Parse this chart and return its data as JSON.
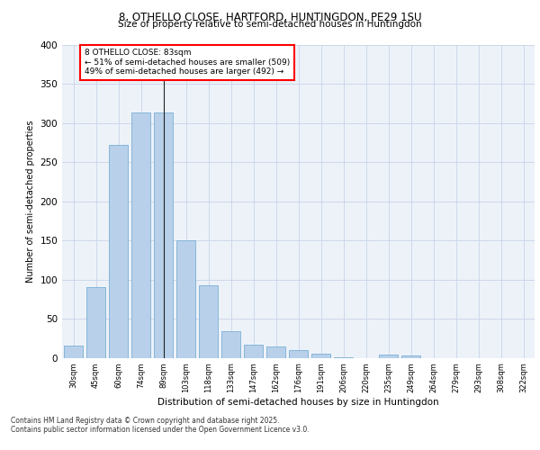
{
  "title1": "8, OTHELLO CLOSE, HARTFORD, HUNTINGDON, PE29 1SU",
  "title2": "Size of property relative to semi-detached houses in Huntingdon",
  "xlabel": "Distribution of semi-detached houses by size in Huntingdon",
  "ylabel": "Number of semi-detached properties",
  "categories": [
    "30sqm",
    "45sqm",
    "60sqm",
    "74sqm",
    "89sqm",
    "103sqm",
    "118sqm",
    "133sqm",
    "147sqm",
    "162sqm",
    "176sqm",
    "191sqm",
    "206sqm",
    "220sqm",
    "235sqm",
    "249sqm",
    "264sqm",
    "279sqm",
    "293sqm",
    "308sqm",
    "322sqm"
  ],
  "values": [
    15,
    90,
    272,
    314,
    314,
    150,
    93,
    34,
    17,
    14,
    10,
    5,
    1,
    0,
    4,
    3,
    0,
    0,
    0,
    0,
    0
  ],
  "bar_color": "#b8d0ea",
  "bar_edge_color": "#7aafd4",
  "property_label": "8 OTHELLO CLOSE: 83sqm",
  "pct_smaller": 51,
  "pct_larger": 49,
  "count_smaller": 509,
  "count_larger": 492,
  "highlight_bar_index": 4,
  "ylim": [
    0,
    400
  ],
  "yticks": [
    0,
    50,
    100,
    150,
    200,
    250,
    300,
    350,
    400
  ],
  "footer1": "Contains HM Land Registry data © Crown copyright and database right 2025.",
  "footer2": "Contains public sector information licensed under the Open Government Licence v3.0.",
  "bg_color": "#edf2f9",
  "grid_color": "#c8d4e8"
}
